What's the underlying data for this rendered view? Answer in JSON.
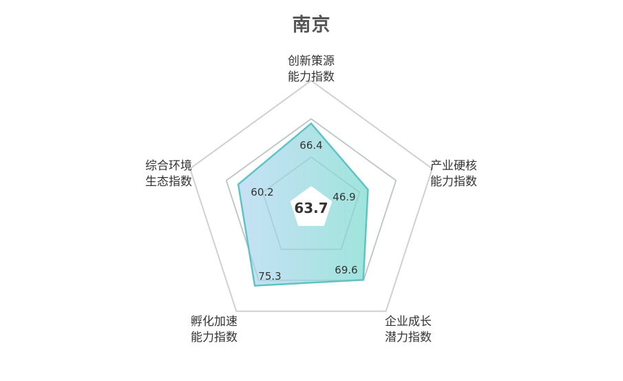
{
  "chart_data": {
    "type": "radar",
    "title": "南京",
    "center_value": "63.7",
    "rlim": [
      0,
      100
    ],
    "grid": true,
    "colors": {
      "fill_start": "#bcdcf3",
      "fill_end": "#8fdfd6",
      "stroke": "#5ec3c5",
      "grid": "#d0d0d0",
      "inner": "#ffffff"
    },
    "axes": [
      {
        "label_line1": "创新策源",
        "label_line2": "能力指数",
        "value": 66.4,
        "value_text": "66.4"
      },
      {
        "label_line1": "产业硬核",
        "label_line2": "能力指数",
        "value": 46.9,
        "value_text": "46.9"
      },
      {
        "label_line1": "企业成长",
        "label_line2": "潜力指数",
        "value": 69.6,
        "value_text": "69.6"
      },
      {
        "label_line1": "孵化加速",
        "label_line2": "能力指数",
        "value": 75.3,
        "value_text": "75.3"
      },
      {
        "label_line1": "综合环境",
        "label_line2": "生态指数",
        "value": 60.2,
        "value_text": "60.2"
      }
    ]
  }
}
